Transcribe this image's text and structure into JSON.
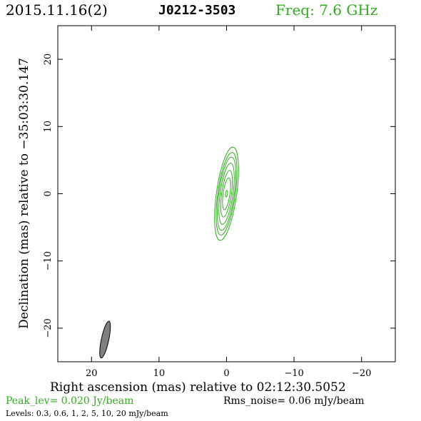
{
  "header": {
    "date": "2015.11.16(2)",
    "source": "J0212-3503",
    "freq": "Freq: 7.6 GHz"
  },
  "colors": {
    "contour": "#33aa22",
    "beam": "#808080",
    "freq_text": "#33aa22"
  },
  "chart_data": {
    "type": "contour",
    "xlabel": "Right ascension (mas) relative to 02:12:30.5052",
    "ylabel": "Declination (mas) relative to −35:03:30.147",
    "xlim": [
      25,
      -25
    ],
    "ylim": [
      -25,
      25
    ],
    "x_ticks": [
      20,
      10,
      0,
      -10,
      -20
    ],
    "y_ticks": [
      20,
      10,
      0,
      -10,
      -20
    ],
    "x_tick_labels": [
      "20",
      "10",
      "0",
      "−10",
      "−20"
    ],
    "y_tick_labels": [
      "20",
      "10",
      "0",
      "−10",
      "−20"
    ],
    "grid": false,
    "component": {
      "center": [
        0,
        0
      ],
      "position_angle_deg": 8,
      "contours": [
        {
          "level_mJy": 0.3,
          "major_semi": 7.0,
          "minor_semi": 1.5
        },
        {
          "level_mJy": 0.6,
          "major_semi": 6.2,
          "minor_semi": 1.3
        },
        {
          "level_mJy": 1,
          "major_semi": 5.5,
          "minor_semi": 1.15
        },
        {
          "level_mJy": 2,
          "major_semi": 4.6,
          "minor_semi": 0.95
        },
        {
          "level_mJy": 5,
          "major_semi": 3.5,
          "minor_semi": 0.72
        },
        {
          "level_mJy": 10,
          "major_semi": 2.4,
          "minor_semi": 0.5
        },
        {
          "level_mJy": 20,
          "major_semi": 0.5,
          "minor_semi": 0.15
        }
      ]
    },
    "beam": {
      "center": [
        18,
        -21.7
      ],
      "major_semi": 2.8,
      "minor_semi": 0.55,
      "position_angle_deg": 12
    }
  },
  "footer": {
    "peak": "Peak_lev=  0.020 Jy/beam",
    "rms": "Rms_noise= 0.06 mJy/beam",
    "levels": "Levels: 0.3,  0.6,    1,    2,    5,   10,   20 mJy/beam"
  }
}
